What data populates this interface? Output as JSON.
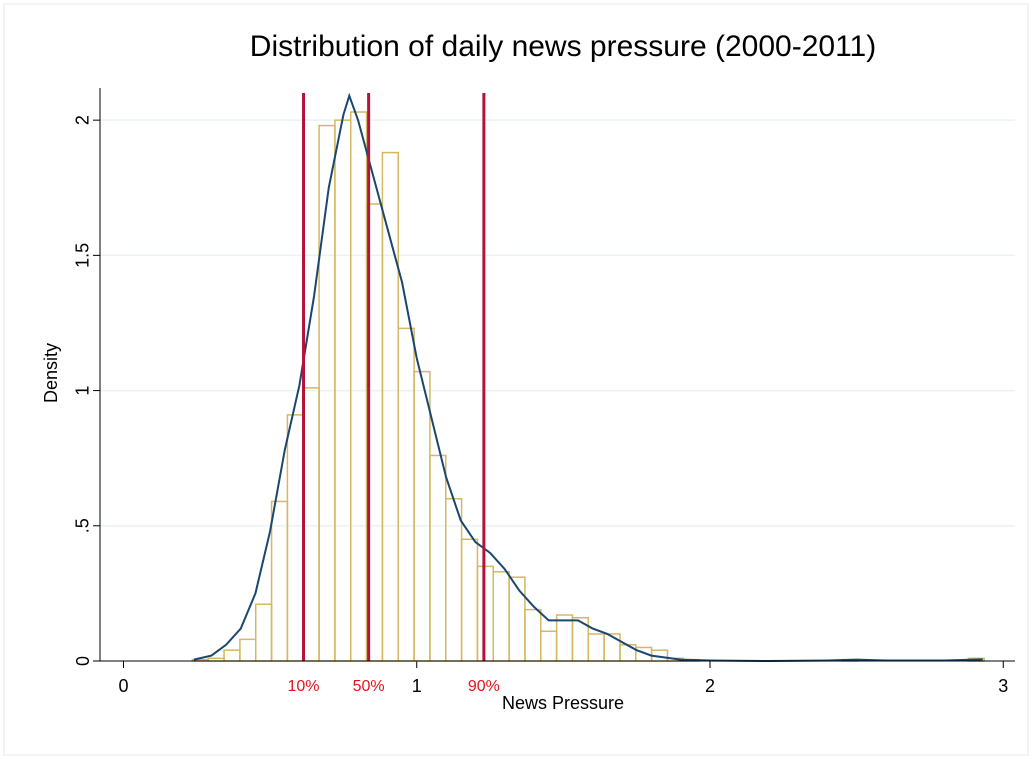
{
  "chart_data": {
    "type": "histogram",
    "title": "Distribution of daily news pressure (2000-2011)",
    "xlabel": "News Pressure",
    "ylabel": "Density",
    "bins": [
      0.235,
      0.289,
      0.343,
      0.397,
      0.451,
      0.505,
      0.559,
      0.613,
      0.667,
      0.721,
      0.775,
      0.829,
      0.883,
      0.937,
      0.991,
      1.045,
      1.099,
      1.153,
      1.207,
      1.261,
      1.315,
      1.369,
      1.423,
      1.477,
      1.531,
      1.585,
      1.639,
      1.693,
      1.747,
      1.801,
      1.855,
      1.909,
      1.963,
      2.017,
      2.071,
      2.125,
      2.179,
      2.233,
      2.287,
      2.341,
      2.395,
      2.449,
      2.503,
      2.557,
      2.611,
      2.665,
      2.719,
      2.773,
      2.827,
      2.881,
      2.935
    ],
    "values": [
      0.005,
      0.01,
      0.04,
      0.08,
      0.21,
      0.59,
      0.91,
      1.01,
      1.98,
      2.0,
      2.03,
      1.69,
      1.88,
      1.23,
      1.07,
      0.76,
      0.6,
      0.45,
      0.35,
      0.33,
      0.31,
      0.19,
      0.11,
      0.17,
      0.16,
      0.1,
      0.1,
      0.06,
      0.05,
      0.04,
      0.01,
      0.005,
      0,
      0,
      0,
      0,
      0,
      0,
      0,
      0,
      0,
      0.005,
      0,
      0,
      0,
      0,
      0,
      0,
      0,
      0.01
    ],
    "color": "#d4b865",
    "density": {
      "x": [
        0.24,
        0.3,
        0.35,
        0.4,
        0.45,
        0.5,
        0.55,
        0.6,
        0.65,
        0.7,
        0.75,
        0.77,
        0.8,
        0.85,
        0.9,
        0.95,
        1.0,
        1.05,
        1.1,
        1.15,
        1.2,
        1.25,
        1.3,
        1.35,
        1.4,
        1.45,
        1.5,
        1.55,
        1.6,
        1.65,
        1.7,
        1.75,
        1.8,
        1.9,
        2.0,
        2.2,
        2.4,
        2.5,
        2.6,
        2.8,
        2.93
      ],
      "y": [
        0.005,
        0.02,
        0.06,
        0.12,
        0.25,
        0.48,
        0.78,
        1.02,
        1.35,
        1.75,
        2.02,
        2.09,
        2.0,
        1.8,
        1.6,
        1.4,
        1.12,
        0.9,
        0.68,
        0.52,
        0.44,
        0.4,
        0.34,
        0.26,
        0.2,
        0.15,
        0.15,
        0.15,
        0.12,
        0.1,
        0.07,
        0.04,
        0.02,
        0.005,
        0.002,
        0,
        0.002,
        0.005,
        0.002,
        0.002,
        0.006
      ],
      "color": "#1a476f"
    },
    "percentiles": [
      {
        "value": 0.614,
        "label": "10%"
      },
      {
        "value": 0.836,
        "label": "50%"
      },
      {
        "value": 1.229,
        "label": "90%"
      }
    ],
    "percentile_color": "#b5123a",
    "percentile_label_color": "#e8121e",
    "xlim": [
      -0.08,
      3.04
    ],
    "ylim": [
      0,
      2.13
    ],
    "xticks": [
      0,
      1,
      2,
      3
    ],
    "yticks": [
      0,
      {
        "value": 0.5,
        "label": ".5"
      },
      1,
      1.5,
      2
    ],
    "grid": true
  }
}
